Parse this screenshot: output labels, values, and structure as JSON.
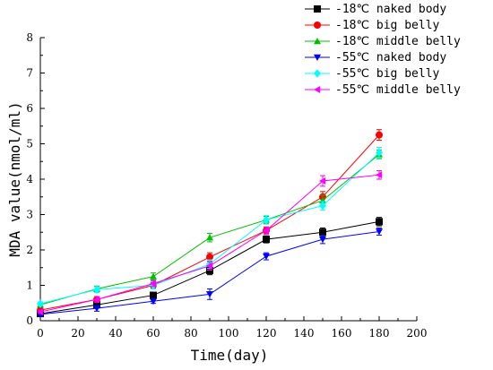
{
  "chart_data": {
    "type": "line",
    "title": "",
    "xlabel": "Time(day)",
    "ylabel": "MDA value(nmol/ml)",
    "xlim": [
      0,
      200
    ],
    "ylim": [
      0,
      8
    ],
    "xticks": [
      0,
      20,
      40,
      60,
      80,
      100,
      120,
      140,
      160,
      180,
      200
    ],
    "yticks": [
      0,
      1,
      2,
      3,
      4,
      5,
      6,
      7,
      8
    ],
    "grid": false,
    "legend_position": "top-right",
    "x": [
      0,
      30,
      60,
      90,
      120,
      150,
      180
    ],
    "series": [
      {
        "name": "-18℃ naked body",
        "color": "#000000",
        "marker": "square",
        "values": [
          0.2,
          0.45,
          0.72,
          1.42,
          2.3,
          2.5,
          2.8
        ],
        "errors": [
          0.05,
          0.08,
          0.08,
          0.12,
          0.1,
          0.12,
          0.12
        ]
      },
      {
        "name": "-18℃ big belly",
        "color": "#ff0000",
        "marker": "circle",
        "values": [
          0.3,
          0.6,
          1.0,
          1.8,
          2.55,
          3.5,
          5.25
        ],
        "errors": [
          0.05,
          0.08,
          0.08,
          0.12,
          0.1,
          0.15,
          0.15
        ]
      },
      {
        "name": "-18℃ middle belly",
        "color": "#00c000",
        "marker": "triangle-up",
        "values": [
          0.45,
          0.9,
          1.25,
          2.35,
          2.85,
          3.4,
          4.7
        ],
        "errors": [
          0.05,
          0.08,
          0.1,
          0.12,
          0.1,
          0.15,
          0.12
        ]
      },
      {
        "name": "-55℃ naked body",
        "color": "#0000ff",
        "marker": "triangle-down",
        "values": [
          0.18,
          0.35,
          0.55,
          0.75,
          1.82,
          2.3,
          2.52
        ],
        "errors": [
          0.05,
          0.08,
          0.06,
          0.15,
          0.1,
          0.12,
          0.1
        ]
      },
      {
        "name": "-55℃ big belly",
        "color": "#00ffff",
        "marker": "diamond",
        "values": [
          0.48,
          0.88,
          1.0,
          1.6,
          2.85,
          3.25,
          4.75
        ],
        "errors": [
          0.05,
          0.08,
          0.1,
          0.12,
          0.12,
          0.12,
          0.15
        ]
      },
      {
        "name": "-55℃ middle belly",
        "color": "#ff00ff",
        "marker": "triangle-left",
        "values": [
          0.25,
          0.6,
          1.05,
          1.55,
          2.55,
          3.95,
          4.12
        ],
        "errors": [
          0.05,
          0.08,
          0.08,
          0.12,
          0.1,
          0.15,
          0.12
        ]
      }
    ]
  }
}
